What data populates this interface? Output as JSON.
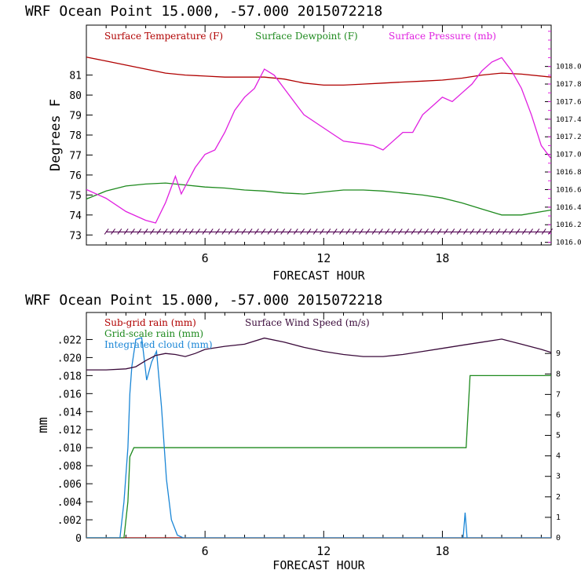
{
  "chart_data": [
    {
      "type": "line",
      "title": "WRF   Ocean Point   15.000, -57.000  2015072218",
      "xlabel": "FORECAST HOUR",
      "ylabel": "Degrees F",
      "y2label": "",
      "xlim": [
        0,
        23.5
      ],
      "ylim": [
        72.5,
        83.5
      ],
      "y2lim": [
        1015.97,
        1018.47
      ],
      "xticks": [
        "6",
        "12",
        "18"
      ],
      "yticks": [
        "73",
        "74",
        "75",
        "76",
        "77",
        "78",
        "79",
        "80",
        "81"
      ],
      "y2ticks": [
        "1016.0",
        "1016.2",
        "1016.4",
        "1016.6",
        "1016.8",
        "1017.0",
        "1017.2",
        "1017.4",
        "1017.6",
        "1017.8",
        "1018.0"
      ],
      "legend": [
        "Surface Temperature (F)",
        "Surface Dewpoint (F)",
        "Surface Pressure (mb)"
      ],
      "series": [
        {
          "name": "Surface Temperature (F)",
          "color": "#b00000",
          "axis": "left",
          "x": [
            0,
            1,
            2,
            3,
            4,
            5,
            6,
            7,
            8,
            9,
            10,
            11,
            12,
            13,
            14,
            15,
            16,
            17,
            18,
            19,
            20,
            21,
            22,
            23.5
          ],
          "y": [
            81.9,
            81.7,
            81.5,
            81.3,
            81.1,
            81.0,
            80.95,
            80.9,
            80.9,
            80.9,
            80.8,
            80.6,
            80.5,
            80.5,
            80.55,
            80.6,
            80.65,
            80.7,
            80.75,
            80.85,
            81.0,
            81.1,
            81.05,
            80.9
          ]
        },
        {
          "name": "Surface Dewpoint (F)",
          "color": "#1e8a1e",
          "axis": "left",
          "x": [
            0,
            1,
            2,
            3,
            4,
            5,
            6,
            7,
            8,
            9,
            10,
            11,
            12,
            13,
            14,
            15,
            16,
            17,
            18,
            19,
            20,
            21,
            22,
            23.5
          ],
          "y": [
            74.8,
            75.2,
            75.45,
            75.55,
            75.6,
            75.5,
            75.4,
            75.35,
            75.25,
            75.2,
            75.1,
            75.05,
            75.15,
            75.25,
            75.25,
            75.2,
            75.1,
            75.0,
            74.85,
            74.6,
            74.3,
            74.0,
            74.0,
            74.25
          ]
        },
        {
          "name": "Surface Pressure (mb)",
          "color": "#e020e0",
          "axis": "right",
          "x": [
            0,
            1,
            2,
            3,
            3.5,
            4,
            4.5,
            4.8,
            5.1,
            5.5,
            6,
            6.5,
            7,
            7.5,
            8,
            8.5,
            9,
            9.5,
            10,
            11,
            12,
            13,
            14,
            14.5,
            15,
            15.5,
            16,
            16.5,
            17,
            17.5,
            18,
            18.5,
            19,
            19.5,
            20,
            20.5,
            21,
            21.5,
            22,
            22.5,
            23,
            23.5
          ],
          "y": [
            1016.6,
            1016.5,
            1016.35,
            1016.25,
            1016.22,
            1016.45,
            1016.75,
            1016.55,
            1016.68,
            1016.85,
            1017.0,
            1017.05,
            1017.25,
            1017.5,
            1017.65,
            1017.75,
            1017.97,
            1017.9,
            1017.75,
            1017.45,
            1017.3,
            1017.15,
            1017.12,
            1017.1,
            1017.05,
            1017.15,
            1017.25,
            1017.25,
            1017.45,
            1017.55,
            1017.65,
            1017.6,
            1017.7,
            1017.8,
            1017.95,
            1018.05,
            1018.1,
            1017.95,
            1017.75,
            1017.45,
            1017.1,
            1016.95
          ]
        },
        {
          "name": "",
          "color": "#500050",
          "axis": "left",
          "barbs": true,
          "x": [
            1,
            23.5
          ],
          "y": [
            73.15,
            73.15
          ]
        }
      ]
    },
    {
      "type": "line",
      "title": "WRF   Ocean Point   15.000, -57.000  2015072218",
      "xlabel": "FORECAST HOUR",
      "ylabel": "mm",
      "xlim": [
        0,
        23.5
      ],
      "ylim": [
        0,
        0.025
      ],
      "y2lim": [
        0,
        11
      ],
      "xticks": [
        "6",
        "12",
        "18"
      ],
      "yticks": [
        "0",
        ".002",
        ".004",
        ".006",
        ".008",
        ".010",
        ".012",
        ".014",
        ".016",
        ".018",
        ".020",
        ".022"
      ],
      "y2ticks": [
        "0",
        "1",
        "2",
        "3",
        "4",
        "5",
        "6",
        "7",
        "8",
        "9"
      ],
      "legend": [
        "Sub-grid rain (mm)",
        "Grid-scale rain (mm)",
        "Integrated cloud (mm)",
        "Surface Wind Speed (m/s)"
      ],
      "series": [
        {
          "name": "Sub-grid rain (mm)",
          "color": "#b00000",
          "axis": "left",
          "x": [
            0,
            23.5
          ],
          "y": [
            0,
            0
          ]
        },
        {
          "name": "Grid-scale rain (mm)",
          "color": "#1e8a1e",
          "axis": "left",
          "x": [
            0,
            1.9,
            2.1,
            2.2,
            2.4,
            19.2,
            19.4,
            23.5
          ],
          "y": [
            0,
            0,
            0.004,
            0.009,
            0.01,
            0.01,
            0.018,
            0.018
          ]
        },
        {
          "name": "Integrated cloud (mm)",
          "color": "#1a86d6",
          "axis": "left",
          "x": [
            0,
            1.7,
            1.9,
            2.1,
            2.2,
            2.3,
            2.5,
            2.8,
            3.05,
            3.3,
            3.55,
            3.8,
            4.05,
            4.3,
            4.6,
            4.9,
            23.5
          ],
          "x2": [
            19.05,
            19.15,
            19.25
          ],
          "y": [
            0,
            0,
            0.004,
            0.01,
            0.016,
            0.019,
            0.022,
            0.0222,
            0.0175,
            0.0195,
            0.0207,
            0.0145,
            0.0065,
            0.002,
            0.0003,
            0,
            0
          ],
          "y2": [
            0,
            0.0028,
            0
          ]
        },
        {
          "name": "Surface Wind Speed (m/s)",
          "color": "#3a0a3a",
          "axis": "right",
          "x": [
            0,
            1,
            2,
            2.5,
            3,
            3.5,
            4,
            4.5,
            5,
            5.5,
            6,
            7,
            8,
            9,
            10,
            11,
            12,
            13,
            14,
            15,
            16,
            17,
            18,
            19,
            20,
            21,
            22,
            23,
            23.5
          ],
          "y": [
            8.2,
            8.2,
            8.25,
            8.35,
            8.65,
            8.9,
            9.0,
            8.95,
            8.85,
            9.0,
            9.2,
            9.35,
            9.45,
            9.75,
            9.55,
            9.3,
            9.1,
            8.95,
            8.85,
            8.85,
            8.95,
            9.1,
            9.25,
            9.4,
            9.55,
            9.7,
            9.45,
            9.2,
            9.05
          ]
        }
      ]
    }
  ]
}
